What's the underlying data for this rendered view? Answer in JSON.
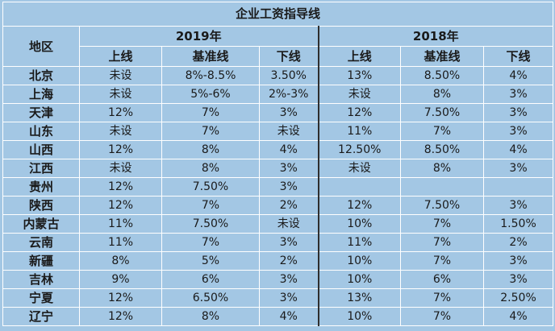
{
  "title": "企业工资指导线",
  "header": {
    "region": "地区",
    "year_a": "2019年",
    "year_b": "2018年",
    "cols": [
      "上线",
      "基准线",
      "下线",
      "上线",
      "基准线",
      "下线"
    ]
  },
  "rows": [
    {
      "region": "北京",
      "cells": [
        "未设",
        "8%-8.5%",
        "3.50%",
        "13%",
        "8.50%",
        "4%"
      ]
    },
    {
      "region": "上海",
      "cells": [
        "未设",
        "5%-6%",
        "2%-3%",
        "未设",
        "8%",
        "3%"
      ]
    },
    {
      "region": "天津",
      "cells": [
        "12%",
        "7%",
        "3%",
        "12%",
        "7.50%",
        "3%"
      ]
    },
    {
      "region": "山东",
      "cells": [
        "未设",
        "7%",
        "未设",
        "11%",
        "7%",
        "3%"
      ]
    },
    {
      "region": "山西",
      "cells": [
        "12%",
        "8%",
        "4%",
        "12.50%",
        "8.50%",
        "4%"
      ]
    },
    {
      "region": "江西",
      "cells": [
        "未设",
        "8%",
        "3%",
        "未设",
        "8%",
        "3%"
      ]
    },
    {
      "region": "贵州",
      "cells": [
        "12%",
        "7.50%",
        "3%",
        "",
        "",
        ""
      ]
    },
    {
      "region": "陕西",
      "cells": [
        "12%",
        "7%",
        "2%",
        "12%",
        "7.50%",
        "3%"
      ]
    },
    {
      "region": "内蒙古",
      "cells": [
        "11%",
        "7.50%",
        "未设",
        "10%",
        "7%",
        "1.50%"
      ]
    },
    {
      "region": "云南",
      "cells": [
        "11%",
        "7%",
        "3%",
        "11%",
        "7%",
        "2%"
      ]
    },
    {
      "region": "新疆",
      "cells": [
        "8%",
        "5%",
        "2%",
        "10%",
        "7%",
        "3%"
      ]
    },
    {
      "region": "吉林",
      "cells": [
        "9%",
        "6%",
        "3%",
        "10%",
        "6%",
        "3%"
      ]
    },
    {
      "region": "宁夏",
      "cells": [
        "12%",
        "6.50%",
        "3%",
        "13%",
        "7%",
        "2.50%"
      ]
    },
    {
      "region": "辽宁",
      "cells": [
        "12%",
        "8%",
        "4%",
        "10%",
        "7%",
        "4%"
      ]
    }
  ]
}
